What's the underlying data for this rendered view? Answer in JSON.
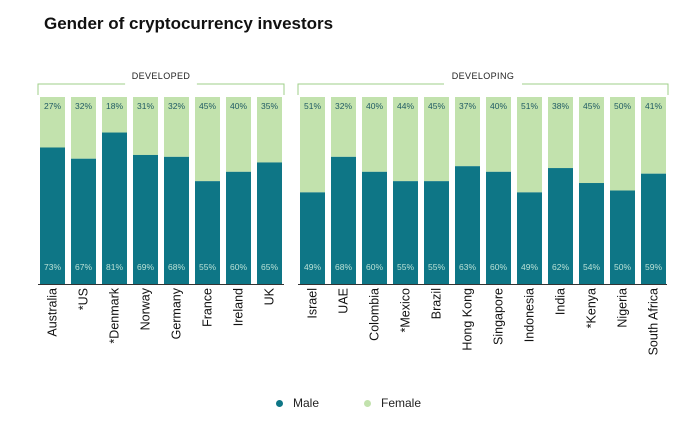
{
  "chart_data": {
    "type": "bar",
    "stacked": true,
    "percent": true,
    "title": "Gender of cryptocurrency investors",
    "groups": [
      {
        "label": "DEVELOPED",
        "start": 0,
        "end": 7
      },
      {
        "label": "DEVELOPING",
        "start": 8,
        "end": 19
      }
    ],
    "categories": [
      "Australia",
      "*US",
      "*Denmark",
      "Norway",
      "Germany",
      "France",
      "Ireland",
      "UK",
      "Israel",
      "UAE",
      "Colombia",
      "*Mexico",
      "Brazil",
      "Hong Kong",
      "Singapore",
      "Indonesia",
      "India",
      "*Kenya",
      "Nigeria",
      "South Africa"
    ],
    "series": [
      {
        "name": "Male",
        "color": "#0e7686",
        "values": [
          73,
          67,
          81,
          69,
          68,
          55,
          60,
          65,
          49,
          68,
          60,
          55,
          55,
          63,
          60,
          49,
          62,
          54,
          50,
          59
        ],
        "labels": [
          "73%",
          "67%",
          "81%",
          "69%",
          "68%",
          "55%",
          "60%",
          "65%",
          "49%",
          "68%",
          "60%",
          "55%",
          "55%",
          "63%",
          "60%",
          "49%",
          "62%",
          "54%",
          "50%",
          "59%"
        ]
      },
      {
        "name": "Female",
        "color": "#c2e2ad",
        "values": [
          27,
          32,
          18,
          31,
          32,
          45,
          40,
          35,
          51,
          32,
          40,
          44,
          45,
          37,
          40,
          51,
          38,
          45,
          50,
          41
        ],
        "labels": [
          "27%",
          "32%",
          "18%",
          "31%",
          "32%",
          "45%",
          "40%",
          "35%",
          "51%",
          "32%",
          "40%",
          "44%",
          "45%",
          "37%",
          "40%",
          "51%",
          "38%",
          "45%",
          "50%",
          "41%"
        ]
      }
    ],
    "ylim": [
      0,
      100
    ],
    "grid": false,
    "legend": "bottom-center"
  }
}
